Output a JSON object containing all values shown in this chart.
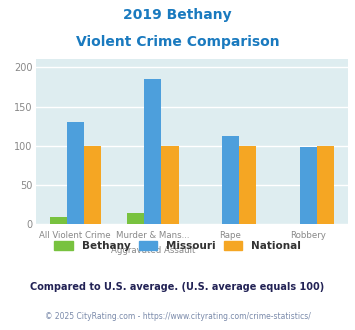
{
  "title_line1": "2019 Bethany",
  "title_line2": "Violent Crime Comparison",
  "title_color": "#1a7abf",
  "cat_labels_row1": [
    "",
    "Murder & Mans...",
    "Rape",
    ""
  ],
  "cat_labels_row2": [
    "All Violent Crime",
    "Aggravated Assault",
    "",
    "Robbery"
  ],
  "bethany": [
    10,
    14,
    0,
    0
  ],
  "missouri": [
    130,
    185,
    112,
    99
  ],
  "national": [
    100,
    100,
    100,
    100
  ],
  "bethany_color": "#78c23f",
  "missouri_color": "#4d9fdc",
  "national_color": "#f5a623",
  "ylim": [
    0,
    210
  ],
  "yticks": [
    0,
    50,
    100,
    150,
    200
  ],
  "bg_color": "#deedf0",
  "grid_color": "#ffffff",
  "footer_text": "Compared to U.S. average. (U.S. average equals 100)",
  "footer_color": "#222255",
  "copyright_text": "© 2025 CityRating.com - https://www.cityrating.com/crime-statistics/",
  "copyright_color": "#7a8aaa",
  "bar_width": 0.22
}
